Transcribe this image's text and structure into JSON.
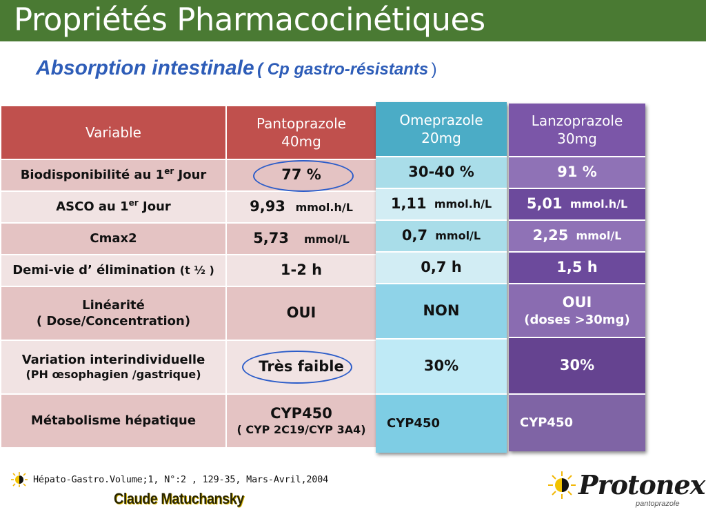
{
  "title": "Propriétés Pharmacocinétiques",
  "subtitle": {
    "main": "Absorption intestinale",
    "paren": "( Cp gastro-résistants",
    "close": ")"
  },
  "table": {
    "headers": {
      "variable": "Variable",
      "panto_name": "Pantoprazole",
      "panto_dose": "40mg"
    },
    "rows": {
      "biodispo": {
        "label_pre": "Biodisponibilité au 1",
        "label_sup": "er",
        "label_post": " Jour",
        "panto": "77 %"
      },
      "asco": {
        "label_pre": "ASCO  au  1",
        "label_sup": "er",
        "label_post": " Jour",
        "panto_val": "9,93",
        "panto_unit": "mmol.h/L"
      },
      "cmax": {
        "label": "Cmax2",
        "panto_val": "5,73",
        "panto_unit": "mmol/L"
      },
      "demivie": {
        "label_main": "Demi-vie d’ élimination",
        "label_small": "(t ½ )",
        "panto": "1-2  h"
      },
      "linearite": {
        "label1": "Linéarité",
        "label2": "( Dose/Concentration)",
        "panto": "OUI"
      },
      "variation": {
        "label1": "Variation interindividuelle",
        "label2": "(PH  œsophagien  /gastrique)",
        "panto": "Très faible"
      },
      "metabolisme": {
        "label": "Métabolisme hépatique",
        "panto1": "CYP450",
        "panto2": "( CYP 2C19/CYP 3A4)"
      }
    }
  },
  "omeprazole": {
    "name": "Omeprazole",
    "dose": "20mg",
    "biodispo": "30-40 %",
    "asco_val": "1,11",
    "asco_unit": "mmol.h/L",
    "cmax_val": "0,7",
    "cmax_unit": "mmol/L",
    "demivie": "0,7 h",
    "linearite": "NON",
    "variation": "30%",
    "metabolisme": "CYP450"
  },
  "lanzoprazole": {
    "name": "Lanzoprazole",
    "dose": "30mg",
    "biodispo": "91 %",
    "asco_val": "5,01",
    "asco_unit": "mmol.h/L",
    "cmax_val": "2,25",
    "cmax_unit": "mmol/L",
    "demivie": "1,5 h",
    "linearite1": "OUI",
    "linearite2": "(doses >30mg)",
    "variation": "30%",
    "metabolisme": "CYP450"
  },
  "footer": {
    "reference": "Hépato-Gastro.Volume;1, N°:2 , 129-35, Mars-Avril,2004",
    "author": "Claude Matuchansky",
    "logo_brand": "Protonex",
    "logo_sub": "pantoprazole"
  },
  "colors": {
    "title_bar": "#4a7a33",
    "subtitle": "#2e5db8",
    "table_header": "#c0504d",
    "ome_header": "#4bacc6",
    "lan_header": "#7b56a8",
    "ellipse": "#2b5cc9"
  },
  "icons": {
    "sun": "sun-icon"
  }
}
